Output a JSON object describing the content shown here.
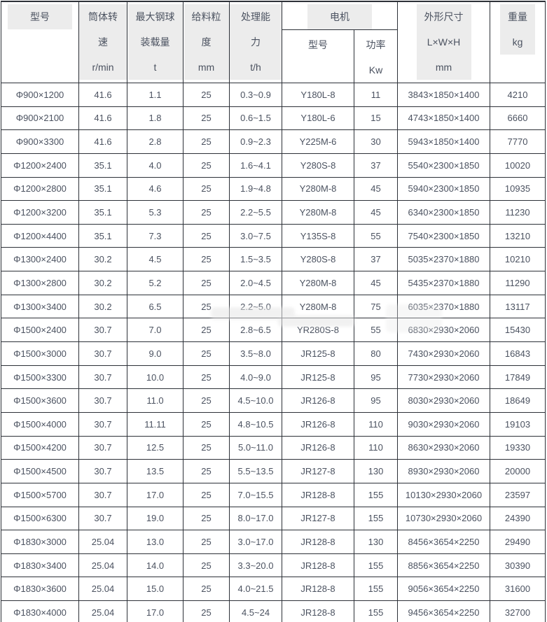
{
  "colors": {
    "background": "#ffffff",
    "border": "#2d3138",
    "text": "#4b5260",
    "header_highlight": "#ececec"
  },
  "table": {
    "headers": {
      "model": "型号",
      "speed": "筒体转速\nr/min",
      "ball_load": "最大钢球\n装载量\nt",
      "feed_size": "给料粒\n度\nmm",
      "capacity": "处理能力\nt/h",
      "motor_group": "电机",
      "motor_model": "型号",
      "motor_power": "功率\nKw",
      "dimensions": "外形尺寸\nL×W×H\nmm",
      "weight": "重量\nkg"
    },
    "columns": [
      "model",
      "speed-rpm",
      "max-ball-load-t",
      "feed-size-mm",
      "capacity-tph",
      "motor-model",
      "motor-power-kw",
      "dimensions-mm",
      "weight-kg"
    ],
    "rows": [
      [
        "Φ900×1200",
        "41.6",
        "1.1",
        "25",
        "0.3~0.9",
        "Y180L-8",
        "11",
        "3843×1850×1400",
        "4210"
      ],
      [
        "Φ900×2100",
        "41.6",
        "1.8",
        "25",
        "0.6~1.5",
        "Y180L-6",
        "15",
        "4743×1850×1400",
        "6660"
      ],
      [
        "Φ900×3300",
        "41.6",
        "2.8",
        "25",
        "0.9~2.3",
        "Y225M-6",
        "30",
        "5943×1850×1400",
        "7770"
      ],
      [
        "Φ1200×2400",
        "35.1",
        "4.0",
        "25",
        "1.6~4.1",
        "Y280S-8",
        "37",
        "5540×2300×1850",
        "10020"
      ],
      [
        "Φ1200×2800",
        "35.1",
        "4.6",
        "25",
        "1.9~4.8",
        "Y280M-8",
        "45",
        "5940×2300×1850",
        "10935"
      ],
      [
        "Φ1200×3200",
        "35.1",
        "5.3",
        "25",
        "2.2~5.5",
        "Y280M-8",
        "45",
        "6340×2300×1850",
        "11230"
      ],
      [
        "Φ1200×4400",
        "35.1",
        "7.3",
        "25",
        "3.0~7.5",
        "Y135S-8",
        "55",
        "7540×2300×1850",
        "13210"
      ],
      [
        "Φ1300×2400",
        "30.2",
        "4.5",
        "25",
        "1.5~3.5",
        "Y280S-8",
        "37",
        "5035×2370×1880",
        "10210"
      ],
      [
        "Φ1300×2800",
        "30.2",
        "5.2",
        "25",
        "2.0~4.5",
        "Y280M-8",
        "45",
        "5435×2370×1880",
        "11290"
      ],
      [
        "Φ1300×3400",
        "30.2",
        "6.5",
        "25",
        "2.2~5.0",
        "Y280M-8",
        "75",
        "6035×2370×1880",
        "13117"
      ],
      [
        "Φ1500×2400",
        "30.7",
        "7.0",
        "25",
        "2.8~6.5",
        "YR280S-8",
        "55",
        "6830×2930×2060",
        "15430"
      ],
      [
        "Φ1500×3000",
        "30.7",
        "9.0",
        "25",
        "3.5~8.0",
        "JR125-8",
        "80",
        "7430×2930×2060",
        "16843"
      ],
      [
        "Φ1500×3300",
        "30.7",
        "10.0",
        "25",
        "4.0~9.0",
        "JR125-8",
        "95",
        "7730×2930×2060",
        "17849"
      ],
      [
        "Φ1500×3600",
        "30.7",
        "11.0",
        "25",
        "4.5~10.0",
        "JR126-8",
        "95",
        "8030×2930×2060",
        "18649"
      ],
      [
        "Φ1500×4000",
        "30.7",
        "11.11",
        "25",
        "4.8~10.5",
        "JR126-8",
        "110",
        "9030×2930×2060",
        "19103"
      ],
      [
        "Φ1500×4200",
        "30.7",
        "12.5",
        "25",
        "5.0~11.0",
        "JR126-8",
        "110",
        "8630×2930×2060",
        "19330"
      ],
      [
        "Φ1500×4500",
        "30.7",
        "13.5",
        "25",
        "5.5~13.5",
        "JR127-8",
        "130",
        "8930×2930×2060",
        "20000"
      ],
      [
        "Φ1500×5700",
        "30.7",
        "17.0",
        "25",
        "7.0~15.5",
        "JR128-8",
        "155",
        "10130×2930×2060",
        "23597"
      ],
      [
        "Φ1500×6300",
        "30.7",
        "19.0",
        "25",
        "8.0~17.0",
        "JR127-8",
        "155",
        "10730×2930×2060",
        "24390"
      ],
      [
        "Φ1830×3000",
        "25.04",
        "13.0",
        "25",
        "3.0~17.0",
        "JR128-8",
        "130",
        "8456×3654×2250",
        "29490"
      ],
      [
        "Φ1830×3400",
        "25.04",
        "14.0",
        "25",
        "3.3~20.0",
        "JR128-8",
        "155",
        "8856×3654×2250",
        "30390"
      ],
      [
        "Φ1830×3600",
        "25.04",
        "15.0",
        "25",
        "4.0~21.5",
        "JR128-8",
        "155",
        "9056×3654×2250",
        "31600"
      ],
      [
        "Φ1830×4000",
        "25.04",
        "17.0",
        "25",
        "4.5~24",
        "JR128-8",
        "155",
        "9456×3654×2250",
        "32700"
      ]
    ]
  }
}
